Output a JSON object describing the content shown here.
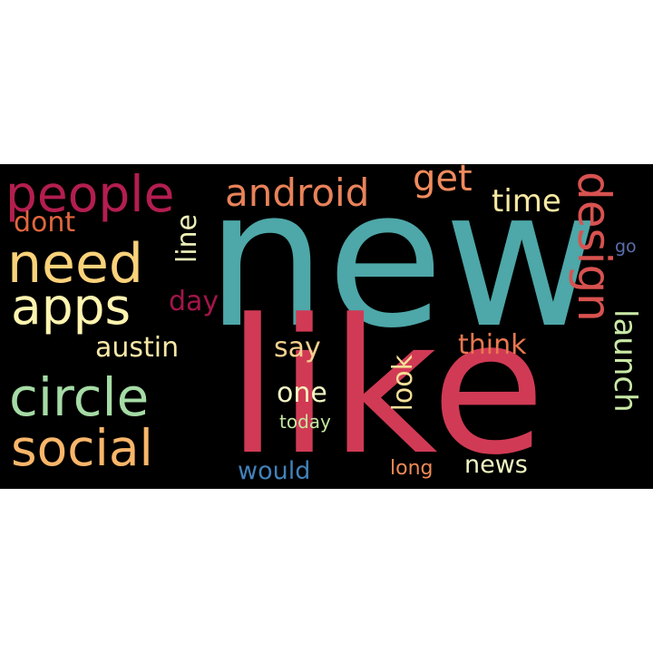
{
  "wordcloud": {
    "background": "#000000",
    "words": {
      "new": {
        "text": "new",
        "color": "#4ea7a8"
      },
      "like": {
        "text": "like",
        "color": "#d13a55"
      },
      "people": {
        "text": "people",
        "color": "#b31e4f"
      },
      "android": {
        "text": "android",
        "color": "#e8825a"
      },
      "get": {
        "text": "get",
        "color": "#f08b5d"
      },
      "design": {
        "text": "design",
        "color": "#d85250"
      },
      "time": {
        "text": "time",
        "color": "#f7e8a2"
      },
      "dont": {
        "text": "dont",
        "color": "#e2663f"
      },
      "line": {
        "text": "line",
        "color": "#eef0b8"
      },
      "need": {
        "text": "need",
        "color": "#fbd27a"
      },
      "go": {
        "text": "go",
        "color": "#5b6fb0"
      },
      "apps": {
        "text": "apps",
        "color": "#fef4b0"
      },
      "day": {
        "text": "day",
        "color": "#a3154a"
      },
      "launch": {
        "text": "launch",
        "color": "#c9e9a6"
      },
      "austin": {
        "text": "austin",
        "color": "#f8e8a6"
      },
      "say": {
        "text": "say",
        "color": "#f5d08f"
      },
      "think": {
        "text": "think",
        "color": "#e9774f"
      },
      "look": {
        "text": "look",
        "color": "#f3df97"
      },
      "circle": {
        "text": "circle",
        "color": "#a5dba5"
      },
      "one": {
        "text": "one",
        "color": "#f2f5c2"
      },
      "today": {
        "text": "today",
        "color": "#c4e7a2"
      },
      "social": {
        "text": "social",
        "color": "#fab66a"
      },
      "would": {
        "text": "would",
        "color": "#4281b8"
      },
      "long": {
        "text": "long",
        "color": "#ed8a56"
      },
      "news": {
        "text": "news",
        "color": "#f1f4c2"
      }
    }
  }
}
